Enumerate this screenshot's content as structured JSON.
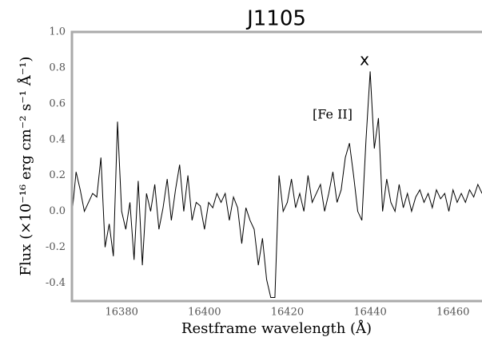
{
  "chart_data": {
    "type": "line",
    "title": "J1105",
    "xlabel": "Restframe wavelength (Å)",
    "ylabel": "Flux (×10⁻¹⁶ erg cm⁻² s⁻¹ Å⁻¹)",
    "annotations": [
      "x",
      "[Fe II]"
    ],
    "x": [
      16368,
      16369,
      16370,
      16371,
      16372,
      16373,
      16374,
      16375,
      16376,
      16377,
      16378,
      16379,
      16380,
      16381,
      16382,
      16383,
      16384,
      16385,
      16386,
      16387,
      16388,
      16389,
      16390,
      16391,
      16392,
      16393,
      16394,
      16395,
      16396,
      16397,
      16398,
      16399,
      16400,
      16401,
      16402,
      16403,
      16404,
      16405,
      16406,
      16407,
      16408,
      16409,
      16410,
      16411,
      16412,
      16413,
      16414,
      16415,
      16416,
      16417,
      16418,
      16419,
      16420,
      16421,
      16422,
      16423,
      16424,
      16425,
      16426,
      16427,
      16428,
      16429,
      16430,
      16431,
      16432,
      16433,
      16434,
      16435,
      16436,
      16437,
      16438,
      16439,
      16440,
      16441,
      16442,
      16443,
      16444,
      16445,
      16446,
      16447,
      16448,
      16449,
      16450,
      16451,
      16452,
      16453,
      16454,
      16455,
      16456,
      16457,
      16458,
      16459,
      16460,
      16461,
      16462,
      16463,
      16464,
      16465,
      16466,
      16467
    ],
    "series": [
      {
        "color": "#000000",
        "values": [
          -0.02,
          0.22,
          0.12,
          0.0,
          0.05,
          0.1,
          0.08,
          0.3,
          -0.2,
          -0.07,
          -0.25,
          0.5,
          0.0,
          -0.1,
          0.05,
          -0.27,
          0.17,
          -0.3,
          0.1,
          0.0,
          0.15,
          -0.1,
          0.02,
          0.18,
          -0.05,
          0.12,
          0.26,
          0.0,
          0.2,
          -0.05,
          0.05,
          0.03,
          -0.1,
          0.05,
          0.02,
          0.1,
          0.05,
          0.1,
          -0.05,
          0.08,
          0.02,
          -0.18,
          0.02,
          -0.05,
          -0.1,
          -0.3,
          -0.15,
          -0.38,
          -0.48,
          -0.48,
          0.2,
          0.0,
          0.05,
          0.18,
          0.02,
          0.1,
          0.0,
          0.2,
          0.05,
          0.1,
          0.15,
          0.0,
          0.1,
          0.22,
          0.05,
          0.12,
          0.3,
          0.38,
          0.2,
          0.0,
          -0.05,
          0.4,
          0.78,
          0.35,
          0.52,
          0.0,
          0.18,
          0.05,
          0.0,
          0.15,
          0.02,
          0.1,
          0.0,
          0.08,
          0.12,
          0.05,
          0.1,
          0.02,
          0.12,
          0.07,
          0.1,
          0.0,
          0.12,
          0.05,
          0.1,
          0.05,
          0.12,
          0.08,
          0.15,
          0.1
        ]
      }
    ],
    "xlim": [
      16368,
      16467
    ],
    "xticks": [
      16380,
      16400,
      16420,
      16440,
      16460
    ],
    "ylim": [
      -0.5,
      1.0
    ],
    "yticks": [
      {
        "value": 1,
        "label": "1.0"
      },
      0.8,
      0.6,
      0.4,
      0.2,
      {
        "value": 0,
        "label": "0.0"
      },
      -0.2,
      -0.4
    ],
    "grid": false
  }
}
